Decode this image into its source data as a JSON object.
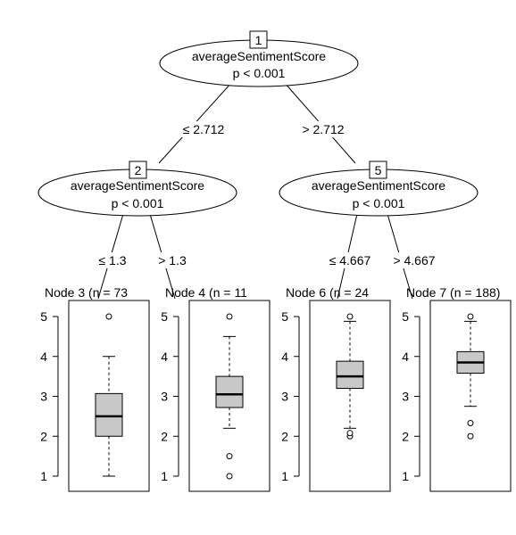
{
  "nodes": [
    {
      "id": "1",
      "variable": "averageSentimentScore",
      "pvalue": "p < 0.001"
    },
    {
      "id": "2",
      "variable": "averageSentimentScore",
      "pvalue": "p < 0.001"
    },
    {
      "id": "5",
      "variable": "averageSentimentScore",
      "pvalue": "p < 0.001"
    }
  ],
  "splits": {
    "n1_left": "≤ 2.712",
    "n1_right": "> 2.712",
    "n2_left": "≤ 1.3",
    "n2_right": "> 1.3",
    "n5_left": "≤ 4.667",
    "n5_right": "> 4.667"
  },
  "axis_ticks": [
    "1",
    "2",
    "3",
    "4",
    "5"
  ],
  "terminals": [
    {
      "label": "Node 3 (n = 73",
      "stats": {
        "min": 1.0,
        "q1": 2.0,
        "median": 2.5,
        "q3": 3.07,
        "max": 4.0
      },
      "outliers": [
        5.0
      ]
    },
    {
      "label": "Node 4 (n = 11",
      "stats": {
        "min": 2.2,
        "q1": 2.72,
        "median": 3.05,
        "q3": 3.5,
        "max": 4.5
      },
      "outliers": [
        1.0,
        1.5,
        5.0
      ]
    },
    {
      "label": "Node 6 (n = 24",
      "stats": {
        "min": 2.2,
        "q1": 3.2,
        "median": 3.5,
        "q3": 3.88,
        "max": 4.88
      },
      "outliers": [
        2.0,
        2.08,
        5.0
      ]
    },
    {
      "label": "Node 7 (n = 188)",
      "stats": {
        "min": 2.75,
        "q1": 3.58,
        "median": 3.85,
        "q3": 4.12,
        "max": 4.88
      },
      "outliers": [
        2.0,
        2.33,
        5.0
      ]
    }
  ]
}
